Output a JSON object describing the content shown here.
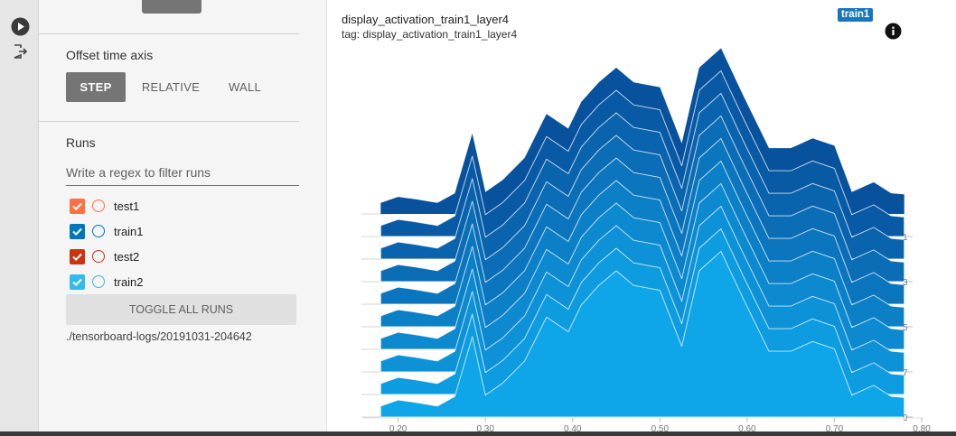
{
  "rail": {
    "icons": [
      "play-circle-icon",
      "logout-icon"
    ]
  },
  "offset": {
    "title": "Offset time axis",
    "options": [
      "STEP",
      "RELATIVE",
      "WALL"
    ],
    "selected": "STEP"
  },
  "runs": {
    "title": "Runs",
    "filter_placeholder": "Write a regex to filter runs",
    "items": [
      {
        "label": "test1",
        "color": "#ff7043",
        "checked": true
      },
      {
        "label": "train1",
        "color": "#0077bb",
        "checked": true
      },
      {
        "label": "test2",
        "color": "#cc3311",
        "checked": true
      },
      {
        "label": "train2",
        "color": "#33bbee",
        "checked": true
      }
    ],
    "toggle_label": "TOGGLE ALL RUNS",
    "logdir": "./tensorboard-logs/20191031-204642"
  },
  "card": {
    "title": "display_activation_train1_layer4",
    "tag": "tag: display_activation_train1_layer4",
    "run_badge": "train1"
  },
  "chart_data": {
    "type": "area",
    "subtype": "histogram-offset",
    "x": [
      0.18,
      0.2,
      0.22,
      0.245,
      0.265,
      0.285,
      0.3,
      0.32,
      0.345,
      0.37,
      0.395,
      0.41,
      0.43,
      0.45,
      0.47,
      0.5,
      0.525,
      0.545,
      0.57,
      0.595,
      0.625,
      0.65,
      0.675,
      0.7,
      0.72,
      0.745,
      0.765,
      0.78
    ],
    "xlim": [
      0.16,
      0.8
    ],
    "x_ticks": [
      "0.20",
      "0.30",
      "0.40",
      "0.50",
      "0.60",
      "0.70",
      "0.80"
    ],
    "x_tick_values": [
      0.2,
      0.3,
      0.4,
      0.5,
      0.6,
      0.7,
      0.8
    ],
    "y_ticks": [
      "1",
      "3",
      "5",
      "7",
      "9"
    ],
    "y_tick_steps": [
      1,
      3,
      5,
      7,
      9
    ],
    "steps": [
      0,
      1,
      2,
      3,
      4,
      5,
      6,
      7,
      8,
      9
    ],
    "colors": {
      "back": "#08519c",
      "front": "#0ea5e9"
    },
    "series": [
      {
        "step": 0,
        "values": [
          0.45,
          0.7,
          0.6,
          0.45,
          0.85,
          3.3,
          0.9,
          1.4,
          2.3,
          4.1,
          3.5,
          4.6,
          5.4,
          6.0,
          5.4,
          5.2,
          2.9,
          6.0,
          6.8,
          4.9,
          2.7,
          2.7,
          3.1,
          2.8,
          0.9,
          1.3,
          0.85,
          0.8
        ]
      },
      {
        "step": 1,
        "values": [
          0.45,
          0.7,
          0.6,
          0.45,
          0.85,
          3.3,
          0.9,
          1.4,
          2.3,
          4.1,
          3.5,
          4.6,
          5.4,
          6.0,
          5.4,
          5.2,
          2.9,
          6.0,
          6.8,
          4.9,
          2.7,
          2.7,
          3.1,
          2.8,
          0.9,
          1.3,
          0.85,
          0.8
        ]
      },
      {
        "step": 2,
        "values": [
          0.45,
          0.7,
          0.6,
          0.45,
          0.85,
          3.3,
          0.9,
          1.4,
          2.3,
          4.1,
          3.5,
          4.6,
          5.4,
          6.0,
          5.4,
          5.2,
          2.9,
          6.0,
          6.8,
          4.9,
          2.7,
          2.7,
          3.1,
          2.8,
          0.9,
          1.3,
          0.85,
          0.8
        ]
      },
      {
        "step": 3,
        "values": [
          0.45,
          0.7,
          0.6,
          0.45,
          0.85,
          3.3,
          0.9,
          1.4,
          2.3,
          4.1,
          3.5,
          4.6,
          5.4,
          6.0,
          5.4,
          5.2,
          2.9,
          6.0,
          6.8,
          4.9,
          2.7,
          2.7,
          3.1,
          2.8,
          0.9,
          1.3,
          0.85,
          0.8
        ]
      },
      {
        "step": 4,
        "values": [
          0.45,
          0.7,
          0.6,
          0.45,
          0.85,
          3.3,
          0.9,
          1.4,
          2.3,
          4.1,
          3.5,
          4.6,
          5.4,
          6.0,
          5.4,
          5.2,
          2.9,
          6.0,
          6.8,
          4.9,
          2.7,
          2.7,
          3.1,
          2.8,
          0.9,
          1.3,
          0.85,
          0.8
        ]
      },
      {
        "step": 5,
        "values": [
          0.45,
          0.7,
          0.6,
          0.45,
          0.85,
          3.3,
          0.9,
          1.4,
          2.3,
          4.1,
          3.5,
          4.6,
          5.4,
          6.0,
          5.4,
          5.2,
          2.9,
          6.0,
          6.8,
          4.9,
          2.7,
          2.7,
          3.1,
          2.8,
          0.9,
          1.3,
          0.85,
          0.8
        ]
      },
      {
        "step": 6,
        "values": [
          0.45,
          0.7,
          0.6,
          0.45,
          0.85,
          3.3,
          0.9,
          1.4,
          2.3,
          4.1,
          3.5,
          4.6,
          5.4,
          6.0,
          5.4,
          5.2,
          2.9,
          6.0,
          6.8,
          4.9,
          2.7,
          2.7,
          3.1,
          2.8,
          0.9,
          1.3,
          0.85,
          0.8
        ]
      },
      {
        "step": 7,
        "values": [
          0.45,
          0.7,
          0.6,
          0.45,
          0.85,
          3.3,
          0.9,
          1.4,
          2.3,
          4.1,
          3.5,
          4.6,
          5.4,
          6.0,
          5.4,
          5.2,
          2.9,
          6.0,
          6.8,
          4.9,
          2.7,
          2.7,
          3.1,
          2.8,
          0.9,
          1.3,
          0.85,
          0.8
        ]
      },
      {
        "step": 8,
        "values": [
          0.45,
          0.7,
          0.6,
          0.45,
          0.85,
          3.3,
          0.9,
          1.4,
          2.3,
          4.1,
          3.5,
          4.6,
          5.4,
          6.0,
          5.4,
          5.2,
          2.9,
          6.0,
          6.8,
          4.9,
          2.7,
          2.7,
          3.1,
          2.8,
          0.9,
          1.3,
          0.85,
          0.8
        ]
      },
      {
        "step": 9,
        "values": [
          0.45,
          0.7,
          0.6,
          0.45,
          0.85,
          3.3,
          0.9,
          1.4,
          2.3,
          4.1,
          3.5,
          4.6,
          5.4,
          6.0,
          5.4,
          5.2,
          2.9,
          6.0,
          6.8,
          4.9,
          2.7,
          2.7,
          3.1,
          2.8,
          0.9,
          1.3,
          0.85,
          0.8
        ]
      }
    ]
  }
}
